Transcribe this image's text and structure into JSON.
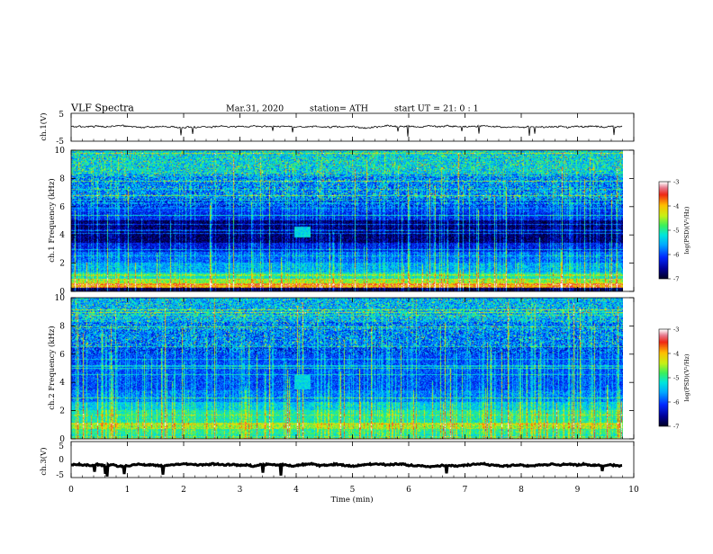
{
  "header": {
    "title": "VLF  Spectra",
    "date": "Mar.31, 2020",
    "station": "station= ATH",
    "start": "start  UT  =   21: 0  : 1"
  },
  "chart_data": [
    {
      "type": "line",
      "name": "ch1-waveform",
      "ylabel": "ch.1(V)",
      "ylim": [
        -5,
        5
      ],
      "yticks": [
        "5",
        "-5"
      ],
      "x_range_min": [
        0,
        9.8
      ],
      "level_V": 0.2,
      "noise_amplitude_V": 0.5
    },
    {
      "type": "heatmap",
      "name": "ch1-spectrogram",
      "ylabel": "ch.1\nFrequency  (kHz)",
      "xlim": [
        0,
        10
      ],
      "ylim": [
        0,
        10
      ],
      "yticks": [
        "0",
        "2",
        "4",
        "6",
        "8",
        "10"
      ],
      "data_extent_min": [
        0,
        9.8
      ],
      "colorbar": {
        "label": "log(PSD)(V²/Hz)",
        "ticks": [
          "-3",
          "-4",
          "-5",
          "-6",
          "-7"
        ],
        "range": [
          -7,
          -3
        ]
      },
      "bands_khz_logpsd": [
        {
          "f": [
            0.0,
            0.2
          ],
          "v": -7.0
        },
        {
          "f": [
            0.2,
            0.45
          ],
          "v": -4.1
        },
        {
          "f": [
            0.45,
            0.8
          ],
          "v": -4.6
        },
        {
          "f": [
            0.8,
            1.3
          ],
          "v": -5.2
        },
        {
          "f": [
            1.3,
            2.0
          ],
          "v": -5.6
        },
        {
          "f": [
            2.0,
            2.8
          ],
          "v": -5.9
        },
        {
          "f": [
            2.8,
            3.4
          ],
          "v": -6.3
        },
        {
          "f": [
            3.4,
            5.0
          ],
          "v": -6.8
        },
        {
          "f": [
            5.0,
            5.6
          ],
          "v": -6.2
        },
        {
          "f": [
            5.6,
            6.6
          ],
          "v": -6.05
        },
        {
          "f": [
            6.6,
            8.3
          ],
          "v": -5.75
        },
        {
          "f": [
            8.3,
            10.0
          ],
          "v": -5.3
        }
      ],
      "features": [
        {
          "kind": "broadband-patch",
          "t_min": [
            3.95,
            4.25
          ],
          "f_khz": [
            3.8,
            4.6
          ],
          "v": -5.3
        }
      ]
    },
    {
      "type": "heatmap",
      "name": "ch2-spectrogram",
      "ylabel": "ch.2\nFrequency  (kHz)",
      "xlim": [
        0,
        10
      ],
      "ylim": [
        0,
        10
      ],
      "yticks": [
        "0",
        "2",
        "4",
        "6",
        "8",
        "10"
      ],
      "data_extent_min": [
        0,
        9.8
      ],
      "colorbar": {
        "label": "log(PSD)(V²/Hz)",
        "ticks": [
          "-3",
          "-4",
          "-5",
          "-6",
          "-7"
        ],
        "range": [
          -7,
          -3
        ]
      },
      "bands_khz_logpsd": [
        {
          "f": [
            0.0,
            0.3
          ],
          "v": -5.2
        },
        {
          "f": [
            0.3,
            0.7
          ],
          "v": -5.0
        },
        {
          "f": [
            0.7,
            1.1
          ],
          "v": -4.6
        },
        {
          "f": [
            1.1,
            2.0
          ],
          "v": -5.1
        },
        {
          "f": [
            2.0,
            2.6
          ],
          "v": -5.4
        },
        {
          "f": [
            2.6,
            3.4
          ],
          "v": -5.8
        },
        {
          "f": [
            3.4,
            5.0
          ],
          "v": -6.0
        },
        {
          "f": [
            5.0,
            6.6
          ],
          "v": -6.0
        },
        {
          "f": [
            6.6,
            8.3
          ],
          "v": -5.8
        },
        {
          "f": [
            8.3,
            10.0
          ],
          "v": -5.5
        }
      ],
      "features": [
        {
          "kind": "broadband-patch",
          "t_min": [
            3.95,
            4.25
          ],
          "f_khz": [
            3.5,
            4.5
          ],
          "v": -5.3
        }
      ]
    },
    {
      "type": "line",
      "name": "ch3-waveform",
      "xlabel": "Time  (min)",
      "ylabel": "ch.3(V)",
      "xlim": [
        0,
        10
      ],
      "ylim": [
        -5,
        5
      ],
      "xticks": [
        "0",
        "1",
        "2",
        "3",
        "4",
        "5",
        "6",
        "7",
        "8",
        "9",
        "10"
      ],
      "yticks": [
        "5",
        "0",
        "-5"
      ],
      "x_range_min": [
        0,
        9.8
      ],
      "level_V": -1.5,
      "noise_amplitude_V": 0.3
    }
  ]
}
